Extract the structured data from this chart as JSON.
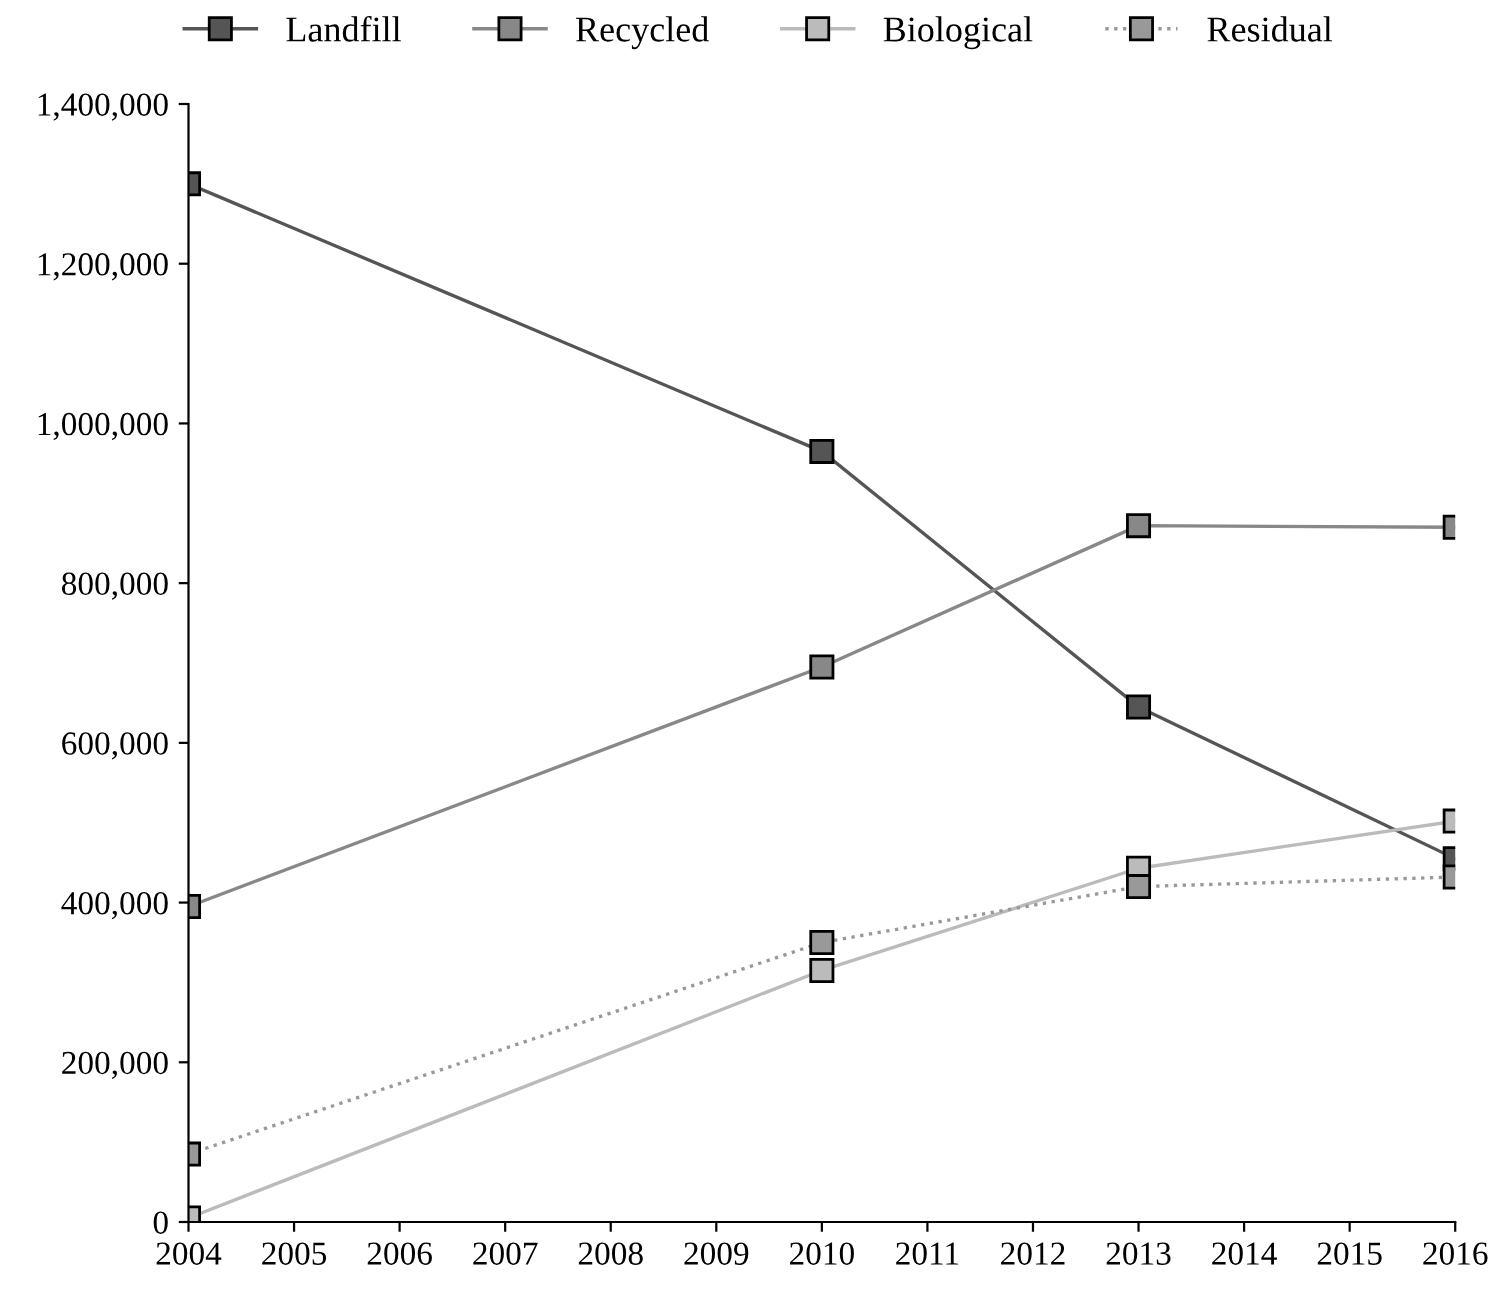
{
  "chart_data": {
    "type": "line",
    "x": [
      2004,
      2010,
      2013,
      2016
    ],
    "series": [
      {
        "name": "Landfill",
        "color": "#555555",
        "values": [
          1300000,
          965000,
          645000,
          455000
        ]
      },
      {
        "name": "Recycled",
        "color": "#888888",
        "values": [
          395000,
          695000,
          872000,
          870000
        ]
      },
      {
        "name": "Biological",
        "color": "#bbbbbb",
        "values": [
          5000,
          315000,
          443000,
          502000
        ]
      },
      {
        "name": "Residual",
        "color": "#999999",
        "values": [
          85000,
          350000,
          420000,
          432000
        ],
        "line_style": "dotted"
      }
    ],
    "xlim": [
      2004,
      2016
    ],
    "xticks": [
      2004,
      2005,
      2006,
      2007,
      2008,
      2009,
      2010,
      2011,
      2012,
      2013,
      2014,
      2015,
      2016
    ],
    "ylim": [
      0,
      1400000
    ],
    "yticks": [
      {
        "value": 0,
        "label": "0"
      },
      {
        "value": 200000,
        "label": "200,000"
      },
      {
        "value": 400000,
        "label": "400,000"
      },
      {
        "value": 600000,
        "label": "600,000"
      },
      {
        "value": 800000,
        "label": "800,000"
      },
      {
        "value": 1000000,
        "label": "1,000,000"
      },
      {
        "value": 1200000,
        "label": "1,200,000"
      },
      {
        "value": 1400000,
        "label": "1,400,000"
      }
    ],
    "marker": "square",
    "line_style": "solid",
    "legend": "top",
    "grid": false
  }
}
